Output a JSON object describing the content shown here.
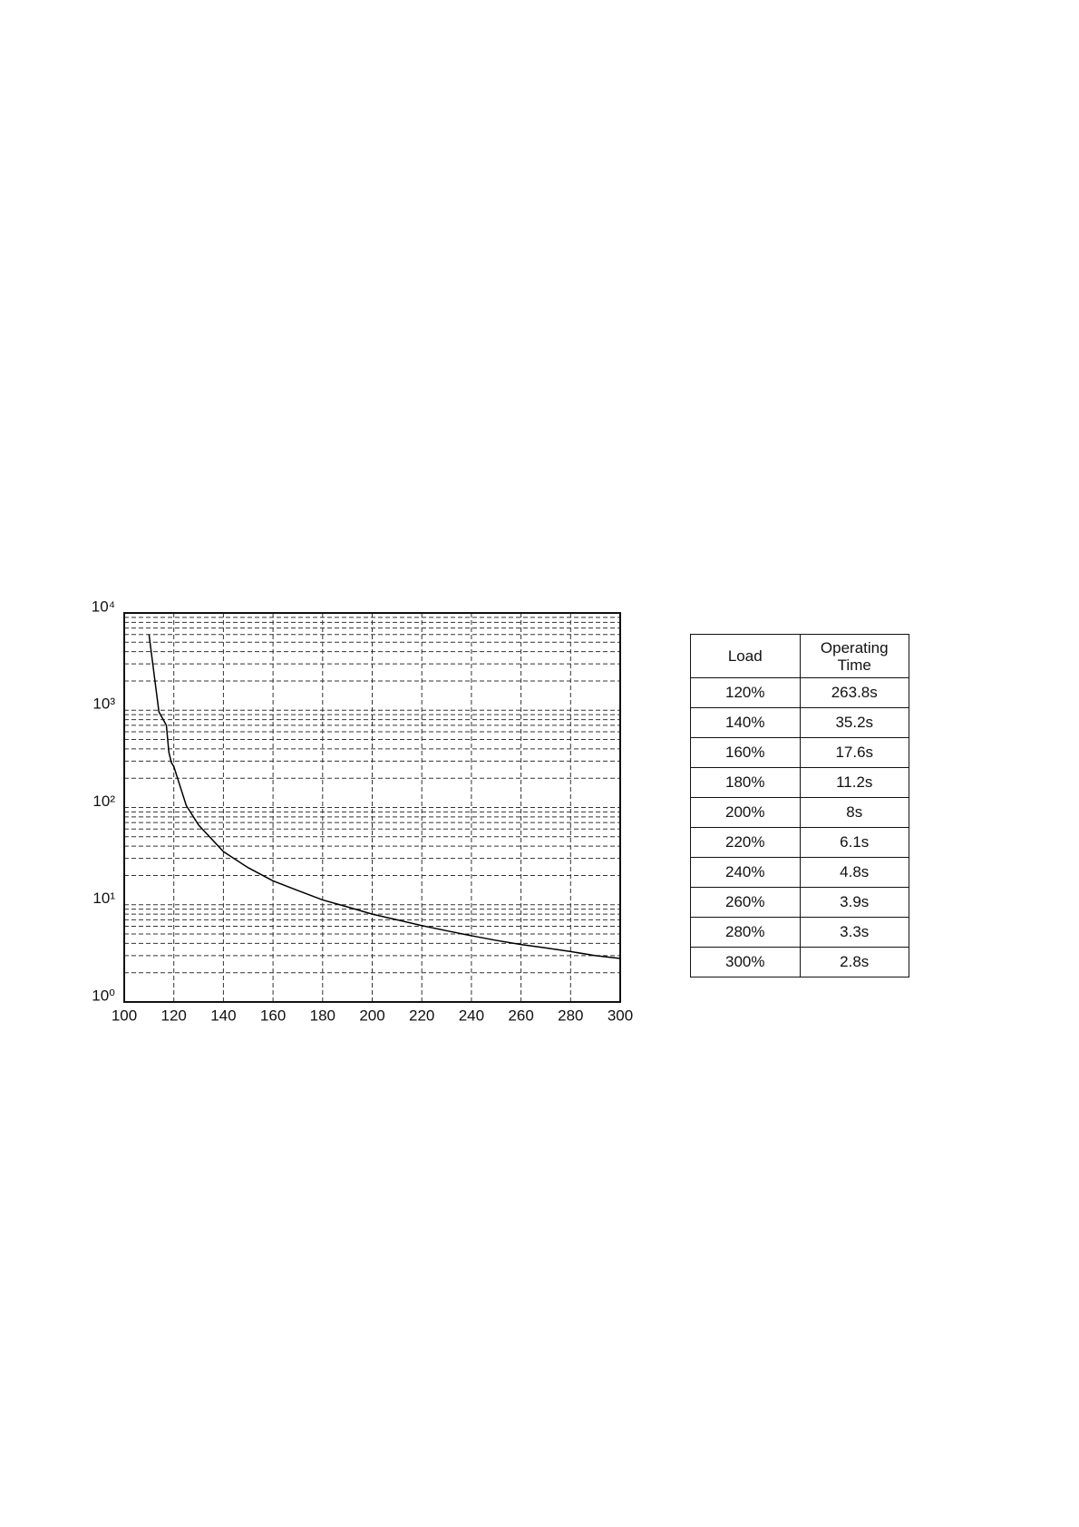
{
  "chart_data": {
    "type": "line",
    "yscale": "log",
    "grid": true,
    "color": "#000000",
    "x": [
      110,
      114,
      117,
      118,
      119,
      120,
      125,
      130,
      140,
      150,
      160,
      170,
      180,
      190,
      200,
      210,
      220,
      230,
      240,
      250,
      260,
      270,
      280,
      290,
      300
    ],
    "values": [
      6000,
      960,
      700,
      370,
      290,
      263.8,
      105,
      66,
      35.2,
      24,
      17.6,
      14,
      11.2,
      9.5,
      8,
      7,
      6.1,
      5.4,
      4.8,
      4.3,
      3.9,
      3.6,
      3.3,
      3.0,
      2.8
    ],
    "xlim": [
      100,
      300
    ],
    "xticks": [
      100,
      120,
      140,
      160,
      180,
      200,
      220,
      240,
      260,
      280,
      300
    ],
    "ylim": [
      1,
      10000
    ],
    "yticks": [
      {
        "value": 1,
        "label": "10⁰"
      },
      {
        "value": 10,
        "label": "10¹"
      },
      {
        "value": 100,
        "label": "10²"
      },
      {
        "value": 1000,
        "label": "10³"
      },
      {
        "value": 10000,
        "label": "10⁴"
      }
    ]
  },
  "table": {
    "header": [
      "Load",
      "Operating Time"
    ],
    "rows": [
      [
        "120%",
        "263.8s"
      ],
      [
        "140%",
        "35.2s"
      ],
      [
        "160%",
        "17.6s"
      ],
      [
        "180%",
        "11.2s"
      ],
      [
        "200%",
        "8s"
      ],
      [
        "220%",
        "6.1s"
      ],
      [
        "240%",
        "4.8s"
      ],
      [
        "260%",
        "3.9s"
      ],
      [
        "280%",
        "3.3s"
      ],
      [
        "300%",
        "2.8s"
      ]
    ]
  }
}
